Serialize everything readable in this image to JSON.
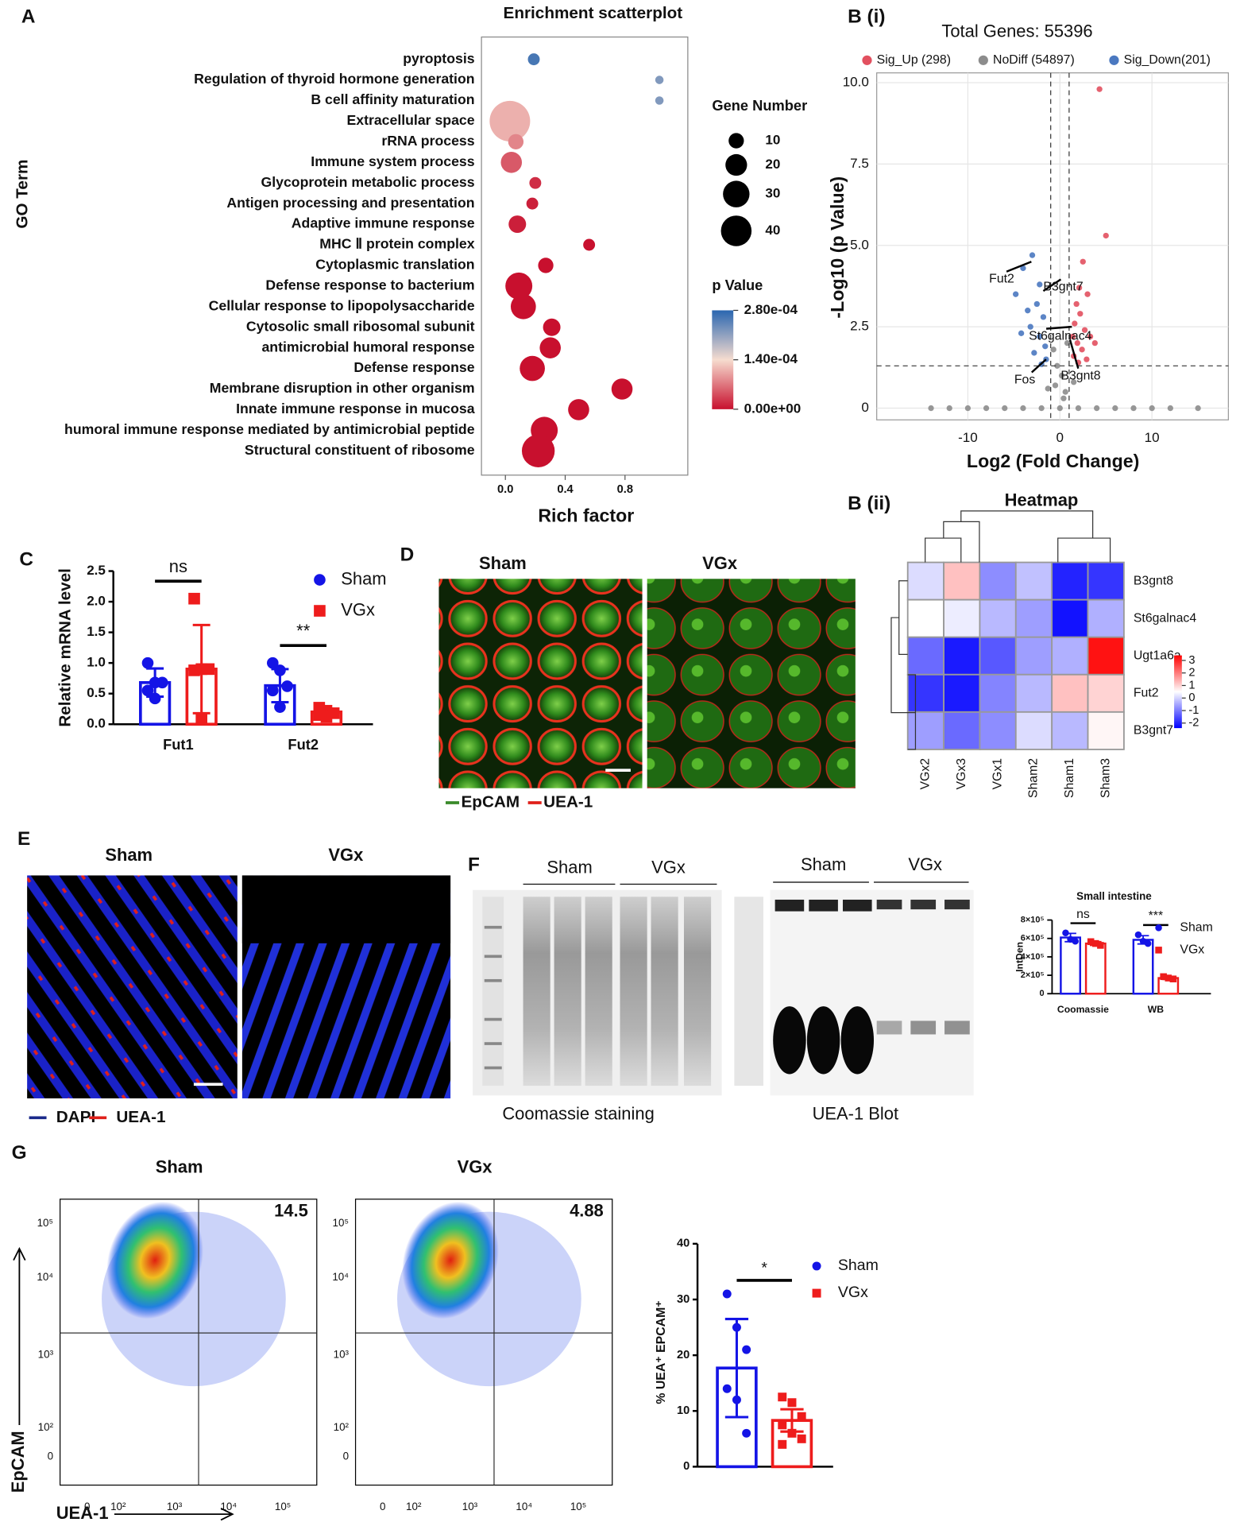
{
  "chart_data": [
    {
      "type": "bubble",
      "title": "Enrichment scatterplot",
      "xlabel": "Rich factor",
      "ylabel": "GO Term",
      "categories": [
        "pyroptosis",
        "Regulation of thyroid hormone generation",
        "B cell affinity maturation",
        "Extracellular space",
        "rRNA process",
        "Immune system process",
        "Glycoprotein metabolic process",
        "Antigen processing and presentation",
        "Adaptive immune response",
        "MHC Ⅱ protein complex",
        "Cytoplasmic translation",
        "Defense response to bacterium",
        "Cellular response to lipopolysaccharide",
        "Cytosolic small ribosomal subunit",
        "antimicrobial humoral response",
        "Defense response",
        "Membrane disruption in other organism",
        "Innate immune response in mucosa",
        "humoral immune response mediated by antimicrobial peptide",
        "Structural constituent of ribosome"
      ],
      "x": [
        0.19,
        1.03,
        1.03,
        0.03,
        0.07,
        0.04,
        0.2,
        0.18,
        0.08,
        0.56,
        0.27,
        0.09,
        0.12,
        0.31,
        0.3,
        0.18,
        0.78,
        0.49,
        0.26,
        0.22
      ],
      "size": [
        6,
        3,
        3,
        70,
        10,
        19,
        6,
        6,
        13,
        6,
        10,
        31,
        27,
        13,
        19,
        27,
        19,
        19,
        31,
        46
      ],
      "p": [
        0.00026,
        0.00022,
        0.00022,
        0.00011,
        8e-05,
        5e-05,
        2e-05,
        1e-05,
        1e-05,
        0,
        0,
        0,
        0,
        0,
        0,
        0,
        0,
        0,
        0,
        0
      ],
      "xlim": [
        -0.16,
        1.22
      ],
      "xticks": [
        {
          "value": 0,
          "label": "0.0"
        },
        0.4,
        0.8
      ],
      "size_label": "Gene Number",
      "size_legend": [
        10,
        20,
        30,
        40
      ],
      "color_label": "p Value",
      "clim": [
        0,
        0.00028
      ],
      "colors": [
        "#c8102e",
        "#f6dccf",
        "#2a66b0"
      ],
      "cticks": [
        {
          "value": 0.00028,
          "label": "2.80e-04"
        },
        {
          "value": 0.00014,
          "label": "1.40e-04"
        },
        {
          "value": 0,
          "label": "0.00e+00"
        }
      ]
    },
    {
      "type": "scatter",
      "title": "Total Genes: 55396",
      "xlabel": "Log2 (Fold Change)",
      "ylabel": "-Log10 (p Value)",
      "xlim": [
        -19.9,
        18.3
      ],
      "ylim": [
        -0.36,
        10.3
      ],
      "xticks": [
        -10,
        0,
        10
      ],
      "yticks": [
        0,
        2.5,
        {
          "value": 5,
          "label": "5.0"
        },
        7.5,
        {
          "value": 10,
          "label": "10.0"
        }
      ],
      "grid": true,
      "vlines": [
        -1,
        1
      ],
      "hline": 1.3,
      "series": [
        {
          "name": "Sig_Up (298)",
          "color": "#e2505f",
          "x": [
            4.3,
            5,
            2.5,
            2.1,
            3,
            1.8,
            2.2,
            1.6,
            2.7,
            3.3,
            1.9,
            2.4,
            1.5,
            3.8,
            2.9,
            2,
            1.4
          ],
          "y": [
            9.8,
            5.3,
            4.5,
            3.7,
            3.5,
            3.2,
            2.9,
            2.6,
            2.4,
            2.2,
            2,
            1.8,
            1.6,
            2,
            1.5,
            1.4,
            2.2
          ]
        },
        {
          "name": "NoDiff (54897)",
          "color": "#8c8c8c",
          "x": [
            -14,
            -12,
            -10,
            -8,
            -6,
            -4,
            -2,
            0,
            2,
            4,
            6,
            8,
            10,
            12,
            15,
            0.2,
            -0.5,
            0.6,
            -0.3,
            0.8,
            -0.7,
            0.4,
            1.5,
            -1.3
          ],
          "y": [
            0,
            0,
            0,
            0,
            0,
            0,
            0,
            0,
            0,
            0,
            0,
            0,
            0,
            0,
            0,
            1,
            0.7,
            0.5,
            1.3,
            2,
            1.8,
            0.3,
            0.8,
            0.6
          ]
        },
        {
          "name": "Sig_Down(201)",
          "color": "#4a78c0",
          "x": [
            -4,
            -3,
            -2.2,
            -4.8,
            -3.5,
            -2.5,
            -1.8,
            -3.2,
            -2.2,
            -1.6,
            -2.8,
            -1.5,
            -4.2,
            -2
          ],
          "y": [
            4.3,
            4.7,
            3.8,
            3.5,
            3,
            3.2,
            2.8,
            2.5,
            2.2,
            1.9,
            1.7,
            1.5,
            2.3,
            1.35
          ]
        }
      ],
      "genes": [
        {
          "name": "Fut2",
          "x": -3.1,
          "y": 4.5
        },
        {
          "name": "B3gnt7",
          "x": -1.8,
          "y": 3.6
        },
        {
          "name": "St6galnac4",
          "x": 1.3,
          "y": 2.5
        },
        {
          "name": "Fos",
          "x": -1.5,
          "y": 1.5
        },
        {
          "name": "B3gnt8",
          "x": 1.1,
          "y": 2.1
        }
      ]
    },
    {
      "type": "heatmap",
      "title": "Heatmap",
      "rows": [
        "B3gnt8",
        "St6galnac4",
        "Ugt1a6a",
        "Fut2",
        "B3gnt7"
      ],
      "columns": [
        "VGx2",
        "VGx3",
        "VGx1",
        "Sham2",
        "Sham1",
        "Sham3"
      ],
      "values": [
        [
          0.1,
          1.2,
          -0.8,
          -0.2,
          -2,
          -1.8
        ],
        [
          0.5,
          0.3,
          -0.3,
          -0.6,
          -2.2,
          -0.4
        ],
        [
          -1.2,
          -2.1,
          -1.4,
          -0.6,
          -0.4,
          3.2
        ],
        [
          -1.8,
          -2.1,
          -0.9,
          -0.3,
          1.2,
          1
        ],
        [
          -0.6,
          -1.2,
          -0.8,
          0.1,
          -0.3,
          0.6
        ]
      ],
      "clim": [
        -2.4,
        3.4
      ],
      "cticks": [
        3,
        2,
        1,
        0,
        -1,
        -2
      ],
      "colors": [
        "#0000ff",
        "#ffffff",
        "#ff0000"
      ]
    },
    {
      "type": "bar",
      "ylabel": "Relative mRNA level",
      "categories": [
        "Fut1",
        "Fut2"
      ],
      "ylim": [
        0,
        2.5
      ],
      "yticks": [
        {
          "value": 0,
          "label": "0.0"
        },
        0.5,
        {
          "value": 1,
          "label": "1.0"
        },
        1.5,
        {
          "value": 2,
          "label": "2.0"
        },
        2.5
      ],
      "significance": [
        "ns",
        "**"
      ],
      "series": [
        {
          "name": "Sham",
          "color": "#1414e6",
          "marker": "circle",
          "values": [
            0.68,
            0.63
          ],
          "errors": [
            0.23,
            0.27
          ],
          "points": [
            [
              1,
              0.68,
              0.68,
              0.55,
              0.42
            ],
            [
              1,
              0.88,
              0.62,
              0.55,
              0.28
            ]
          ]
        },
        {
          "name": "VGx",
          "color": "#ee1c1c",
          "marker": "square",
          "values": [
            0.9,
            0.2
          ],
          "errors": [
            0.72,
            0.05
          ],
          "points": [
            [
              2.05,
              0.9,
              0.9,
              0.88,
              0.1
            ],
            [
              0.27,
              0.22,
              0.18,
              0.15,
              0.12
            ]
          ]
        }
      ]
    },
    {
      "type": "bar",
      "title": "Small intestine",
      "ylabel": "IntDen",
      "categories": [
        "Coomassie",
        "WB"
      ],
      "ylim": [
        0,
        800000
      ],
      "yticks": [
        0,
        {
          "value": 200000,
          "label": "2×10⁵"
        },
        {
          "value": 400000,
          "label": "4×10⁵"
        },
        {
          "value": 600000,
          "label": "6×10⁵"
        },
        {
          "value": 800000,
          "label": "8×10⁵"
        }
      ],
      "significance": [
        "ns",
        "***"
      ],
      "series": [
        {
          "name": "Sham",
          "color": "#1414e6",
          "marker": "circle",
          "values": [
            610000,
            585000
          ],
          "errors": [
            45000,
            45000
          ],
          "points": [
            [
              660000,
              590000,
              570000
            ],
            [
              640000,
              570000,
              545000
            ]
          ]
        },
        {
          "name": "VGx",
          "color": "#ee1c1c",
          "marker": "square",
          "values": [
            545000,
            170000
          ],
          "errors": [
            20000,
            15000
          ],
          "points": [
            [
              565000,
              545000,
              525000
            ],
            [
              185000,
              170000,
              160000
            ]
          ]
        }
      ]
    },
    {
      "type": "bar",
      "ylabel": "% UEA⁺ EPCAM⁺",
      "categories": [
        null
      ],
      "ylim": [
        0,
        40
      ],
      "yticks": [
        0,
        10,
        20,
        30,
        40
      ],
      "significance": [
        "*"
      ],
      "series": [
        {
          "name": "Sham",
          "color": "#1414e6",
          "marker": "circle",
          "values": [
            17.7
          ],
          "errors": [
            8.8
          ],
          "points": [
            [
              31,
              25,
              21,
              14,
              12,
              6
            ]
          ]
        },
        {
          "name": "VGx",
          "color": "#ee1c1c",
          "marker": "square",
          "values": [
            8.3
          ],
          "errors": [
            2
          ],
          "points": [
            [
              12.5,
              11.5,
              9,
              7.5,
              6,
              5,
              4
            ]
          ]
        }
      ]
    }
  ],
  "figure": {
    "panels": [
      "A",
      "B (i)",
      "B (ii)",
      "C",
      "D",
      "E",
      "F",
      "G"
    ],
    "D": {
      "labels": [
        "Sham",
        "VGx"
      ],
      "legend": [
        "EpCAM",
        "UEA-1"
      ]
    },
    "E": {
      "labels": [
        "Sham",
        "VGx"
      ],
      "legend": [
        "DAPI",
        "UEA-1"
      ]
    },
    "F": {
      "coomassie_groups": [
        "Sham",
        "VGx"
      ],
      "blot_groups": [
        "Sham",
        "VGx"
      ],
      "captions": [
        "Coomassie staining",
        "UEA-1 Blot"
      ]
    },
    "G": {
      "titles": [
        "Sham",
        "VGx"
      ],
      "quadrants": [
        "14.5",
        "4.88"
      ],
      "yticks": [
        "10⁵",
        "10⁴",
        "10³",
        "10²",
        "0"
      ],
      "xticks": [
        "0",
        "10²",
        "10³",
        "10⁴",
        "10⁵"
      ],
      "ylabel": "EpCAM",
      "xlabel": "UEA-1"
    }
  }
}
